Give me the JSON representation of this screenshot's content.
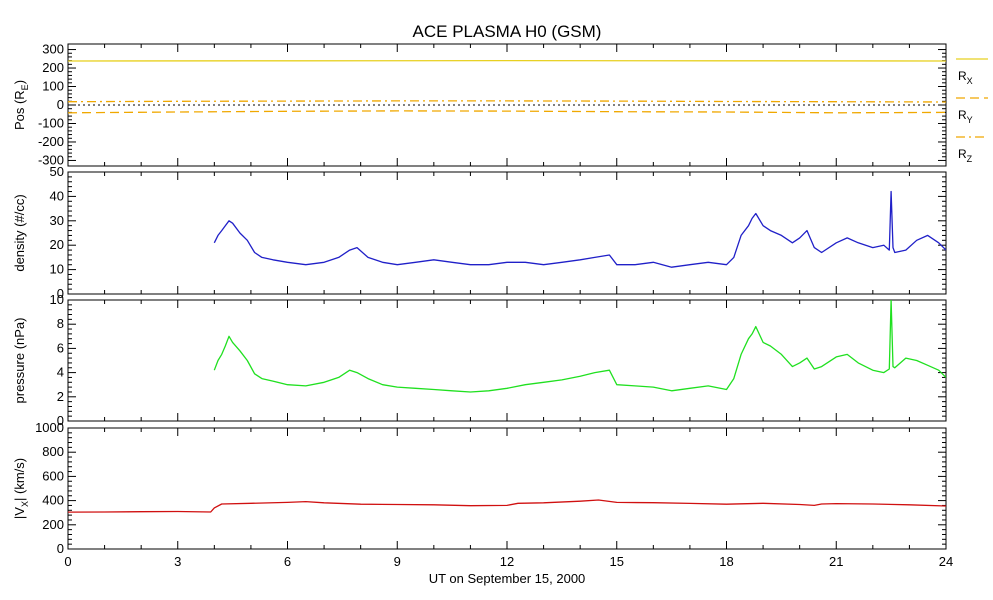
{
  "chart_data": {
    "title": "ACE PLASMA H0 (GSM)",
    "xlabel": "UT on September 15, 2000",
    "xlim": [
      0,
      24
    ],
    "xticks": [
      0,
      3,
      6,
      9,
      12,
      15,
      18,
      21,
      24
    ],
    "xtick_labels": [
      "0",
      "3",
      "6",
      "9",
      "12",
      "15",
      "18",
      "21",
      "24"
    ],
    "colors": {
      "rx": "#e8d020",
      "ry": "#f0a800",
      "rz": "#f0a800",
      "density": "#2020c8",
      "pressure": "#20e020",
      "vx": "#d01010",
      "zero_line": "#000000"
    },
    "panels": [
      {
        "id": "pos",
        "type": "line",
        "ylabel": "Pos (R",
        "ylabel_sub": "E",
        "ylabel_end": ")",
        "ylim": [
          -330,
          330
        ],
        "yticks": [
          -300,
          -200,
          -100,
          0,
          100,
          200,
          300
        ],
        "ytick_labels": [
          "-300",
          "-200",
          "-100",
          "0",
          "100",
          "200",
          "300"
        ],
        "zero_line": true,
        "legend_placement": "right",
        "series": [
          {
            "name": "R",
            "sub": "X",
            "key": "rx",
            "style": "solid",
            "x": [
              0,
              6,
              12,
              18,
              24
            ],
            "values": [
              238,
              239,
              240,
              239,
              238
            ]
          },
          {
            "name": "R",
            "sub": "Y",
            "key": "ry",
            "style": "dashed",
            "x": [
              0,
              3,
              6,
              9,
              12,
              15,
              18,
              21,
              24
            ],
            "values": [
              -42,
              -38,
              -34,
              -32,
              -33,
              -36,
              -38,
              -42,
              -40
            ]
          },
          {
            "name": "R",
            "sub": "Z",
            "key": "rz",
            "style": "dashdot",
            "x": [
              0,
              3,
              6,
              9,
              12,
              15,
              18,
              21,
              24
            ],
            "values": [
              18,
              20,
              21,
              22,
              22,
              21,
              19,
              18,
              16
            ]
          }
        ]
      },
      {
        "id": "density",
        "type": "line",
        "ylabel": "density (#/cc)",
        "ylim": [
          0,
          50
        ],
        "yticks": [
          0,
          10,
          20,
          30,
          40,
          50
        ],
        "ytick_labels": [
          "0",
          "10",
          "20",
          "30",
          "40",
          "50"
        ],
        "series": [
          {
            "key": "density",
            "x": [
              4.0,
              4.1,
              4.2,
              4.3,
              4.4,
              4.5,
              4.7,
              4.9,
              5.1,
              5.3,
              5.6,
              6.0,
              6.5,
              7.0,
              7.4,
              7.7,
              7.9,
              8.2,
              8.6,
              9.0,
              9.5,
              10.0,
              10.5,
              11.0,
              11.5,
              12.0,
              12.5,
              13.0,
              13.5,
              14.0,
              14.4,
              14.8,
              15.0,
              15.5,
              16.0,
              16.5,
              17.0,
              17.5,
              18.0,
              18.2,
              18.4,
              18.6,
              18.7,
              18.8,
              19.0,
              19.2,
              19.5,
              19.8,
              20.0,
              20.2,
              20.4,
              20.6,
              21.0,
              21.3,
              21.6,
              22.0,
              22.3,
              22.45,
              22.5,
              22.55,
              22.6,
              22.9,
              23.2,
              23.5,
              23.8,
              24.0
            ],
            "values": [
              21,
              24,
              26,
              28,
              30,
              29,
              25,
              22,
              17,
              15,
              14,
              13,
              12,
              13,
              15,
              18,
              19,
              15,
              13,
              12,
              13,
              14,
              13,
              12,
              12,
              13,
              13,
              12,
              13,
              14,
              15,
              16,
              12,
              12,
              13,
              11,
              12,
              13,
              12,
              15,
              24,
              28,
              31,
              33,
              28,
              26,
              24,
              21,
              23,
              26,
              19,
              17,
              21,
              23,
              21,
              19,
              20,
              18,
              42,
              19,
              17,
              18,
              22,
              24,
              21,
              18
            ]
          }
        ]
      },
      {
        "id": "pressure",
        "type": "line",
        "ylabel": "pressure (nPa)",
        "ylim": [
          0,
          10
        ],
        "yticks": [
          0,
          2,
          4,
          6,
          8,
          10
        ],
        "ytick_labels": [
          "0",
          "2",
          "4",
          "6",
          "8",
          "10"
        ],
        "series": [
          {
            "key": "pressure",
            "x": [
              4.0,
              4.1,
              4.2,
              4.3,
              4.4,
              4.5,
              4.7,
              4.9,
              5.1,
              5.3,
              5.6,
              6.0,
              6.5,
              7.0,
              7.4,
              7.7,
              7.9,
              8.2,
              8.6,
              9.0,
              9.5,
              10.0,
              10.5,
              11.0,
              11.5,
              12.0,
              12.5,
              13.0,
              13.5,
              14.0,
              14.4,
              14.8,
              15.0,
              15.5,
              16.0,
              16.5,
              17.0,
              17.5,
              18.0,
              18.2,
              18.4,
              18.6,
              18.7,
              18.8,
              19.0,
              19.2,
              19.5,
              19.8,
              20.0,
              20.2,
              20.4,
              20.6,
              21.0,
              21.3,
              21.6,
              22.0,
              22.3,
              22.45,
              22.5,
              22.55,
              22.6,
              22.9,
              23.2,
              23.5,
              23.8,
              24.0
            ],
            "values": [
              4.2,
              5.0,
              5.5,
              6.2,
              7.0,
              6.5,
              5.8,
              5.0,
              3.9,
              3.5,
              3.3,
              3.0,
              2.9,
              3.2,
              3.6,
              4.2,
              4.0,
              3.5,
              3.0,
              2.8,
              2.7,
              2.6,
              2.5,
              2.4,
              2.5,
              2.7,
              3.0,
              3.2,
              3.4,
              3.7,
              4.0,
              4.2,
              3.0,
              2.9,
              2.8,
              2.5,
              2.7,
              2.9,
              2.6,
              3.5,
              5.5,
              6.8,
              7.2,
              7.8,
              6.5,
              6.2,
              5.5,
              4.5,
              4.8,
              5.2,
              4.3,
              4.5,
              5.3,
              5.5,
              4.8,
              4.2,
              4.0,
              4.3,
              10.0,
              4.5,
              4.4,
              5.2,
              5.0,
              4.6,
              4.2,
              3.6
            ]
          }
        ]
      },
      {
        "id": "vx",
        "type": "line",
        "ylabel": "|V",
        "ylabel_sub": "X",
        "ylabel_end": "| (km/s)",
        "ylim": [
          0,
          1000
        ],
        "yticks": [
          0,
          200,
          400,
          600,
          800,
          1000
        ],
        "ytick_labels": [
          "0",
          "200",
          "400",
          "600",
          "800",
          "1000"
        ],
        "series": [
          {
            "key": "vx",
            "x": [
              0,
              1,
              2,
              3,
              3.9,
              4.0,
              4.2,
              5.0,
              6.0,
              6.5,
              7.0,
              8.0,
              9.0,
              10.0,
              11.0,
              12.0,
              12.3,
              13.0,
              14.0,
              14.5,
              15.0,
              16.0,
              17.0,
              18.0,
              19.0,
              20.0,
              20.4,
              20.6,
              21.0,
              22.0,
              23.0,
              24.0
            ],
            "values": [
              305,
              306,
              308,
              310,
              306,
              340,
              372,
              378,
              385,
              392,
              382,
              370,
              368,
              365,
              358,
              360,
              378,
              382,
              395,
              405,
              385,
              383,
              377,
              370,
              378,
              368,
              360,
              372,
              375,
              372,
              365,
              355
            ]
          }
        ]
      }
    ]
  }
}
